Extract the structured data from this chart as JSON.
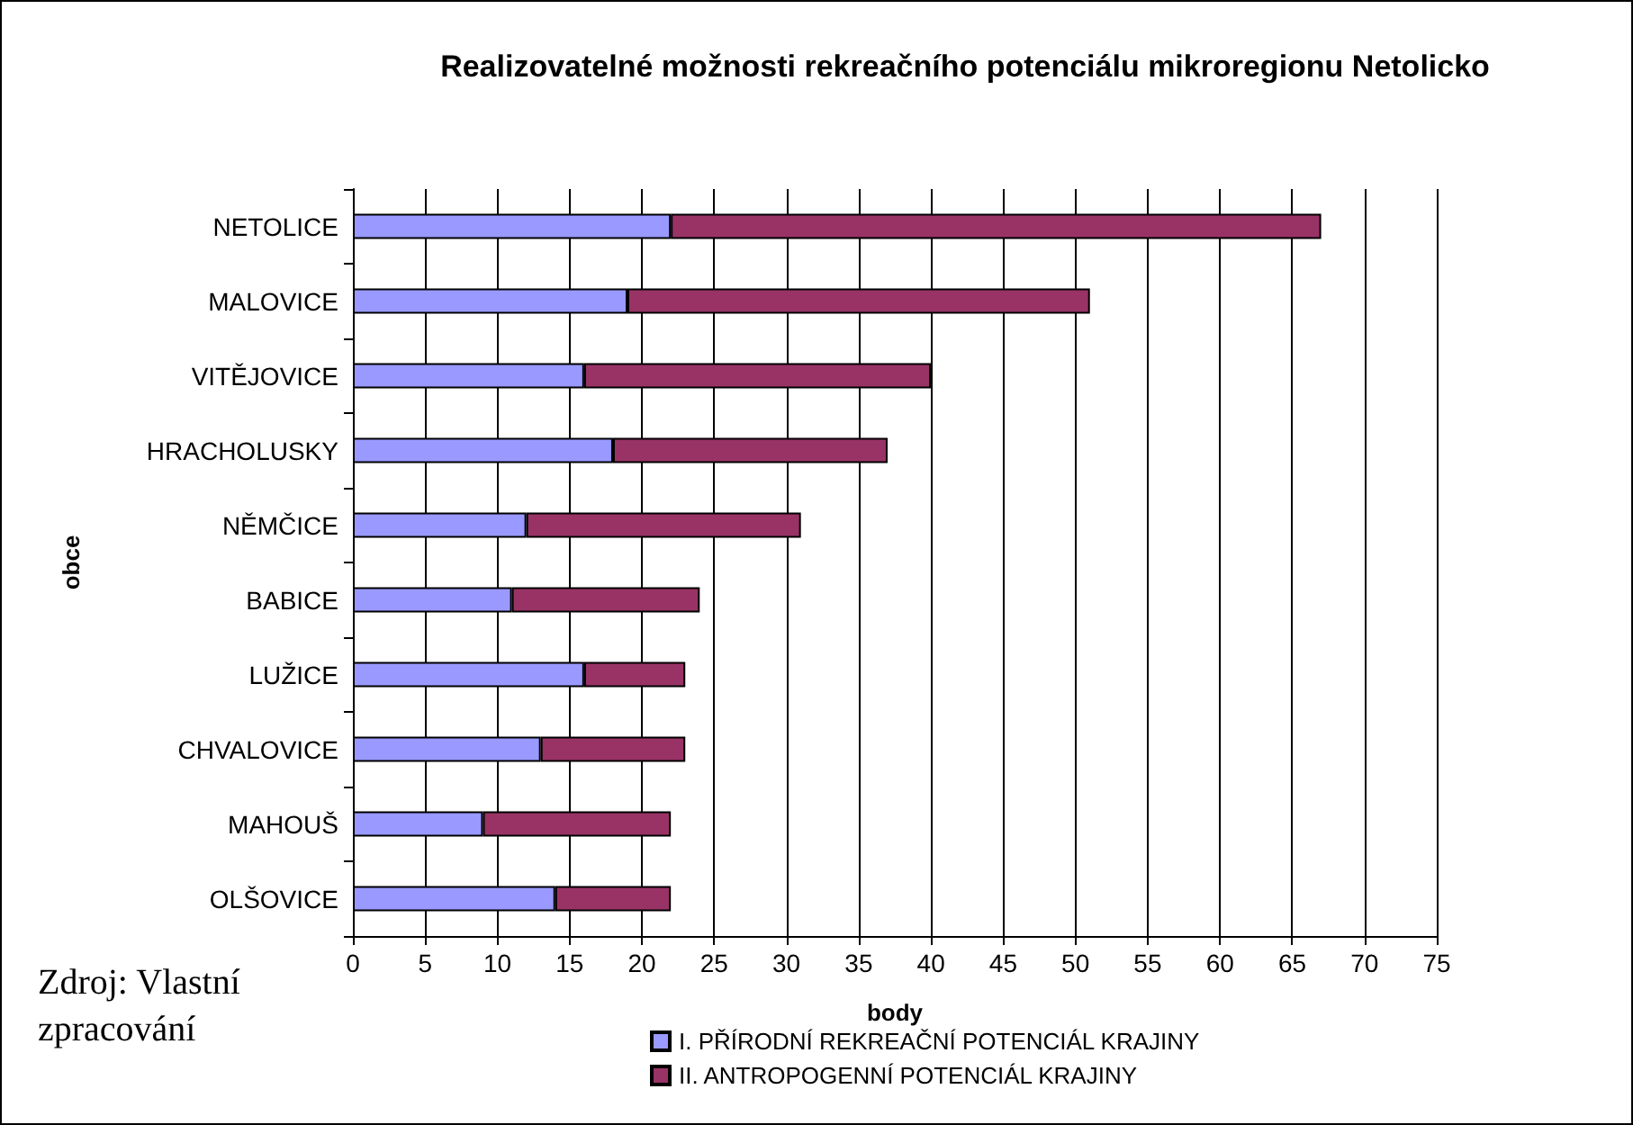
{
  "chart_data": {
    "type": "bar",
    "orientation": "horizontal",
    "stacked": true,
    "title": "Realizovatelné možnosti rekreačního potenciálu mikroregionu Netolicko",
    "xlabel": "body",
    "ylabel": "obce",
    "categories": [
      "NETOLICE",
      "MALOVICE",
      "VITĚJOVICE",
      "HRACHOLUSKY",
      "NĚMČICE",
      "BABICE",
      "LUŽICE",
      "CHVALOVICE",
      "MAHOUŠ",
      "OLŠOVICE"
    ],
    "series": [
      {
        "name": "I. PŘÍRODNÍ REKREAČNÍ POTENCIÁL KRAJINY",
        "color": "#9999ff",
        "values": [
          22,
          19,
          16,
          18,
          12,
          11,
          16,
          13,
          9,
          14
        ]
      },
      {
        "name": "II. ANTROPOGENNÍ POTENCIÁL KRAJINY",
        "color": "#993366",
        "values": [
          45,
          32,
          24,
          19,
          19,
          13,
          7,
          10,
          13,
          8
        ]
      }
    ],
    "xlim": [
      0,
      75
    ],
    "xticks": [
      0,
      5,
      10,
      15,
      20,
      25,
      30,
      35,
      40,
      45,
      50,
      55,
      60,
      65,
      70,
      75
    ],
    "grid": "x",
    "legend": "bottom",
    "annotations": [
      "Zdroj: Vlastní zpracování"
    ]
  }
}
